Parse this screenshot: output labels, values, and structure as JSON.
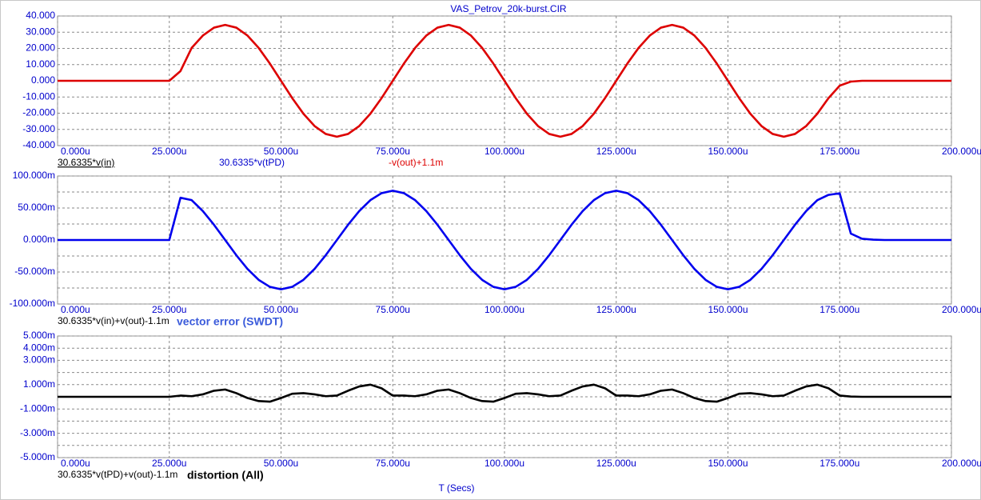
{
  "chart_data": [
    {
      "type": "line",
      "title": "VAS_Petrov_20k-burst.CIR",
      "x": [
        0,
        2.5,
        5,
        7.5,
        10,
        12.5,
        15,
        17.5,
        20,
        22.5,
        25,
        27.5,
        30,
        32.5,
        35,
        37.5,
        40,
        42.5,
        45,
        47.5,
        50,
        52.5,
        55,
        57.5,
        60,
        62.5,
        65,
        67.5,
        70,
        72.5,
        75,
        77.5,
        80,
        82.5,
        85,
        87.5,
        90,
        92.5,
        95,
        97.5,
        100,
        102.5,
        105,
        107.5,
        110,
        112.5,
        115,
        117.5,
        120,
        122.5,
        125,
        127.5,
        130,
        132.5,
        135,
        137.5,
        140,
        142.5,
        145,
        147.5,
        150,
        152.5,
        155,
        157.5,
        160,
        162.5,
        165,
        167.5,
        170,
        172.5,
        175,
        177.5,
        180,
        182.5,
        185,
        187.5,
        190,
        192.5,
        195,
        197.5,
        200
      ],
      "series": [
        {
          "name": "-v(out)+1.1m",
          "color": "#dd0000",
          "values": [
            0,
            0,
            0,
            0,
            0,
            0,
            0,
            0,
            0,
            0,
            0,
            6,
            20.28,
            27.91,
            32.81,
            34.5,
            32.81,
            27.91,
            20.28,
            10.66,
            0,
            -10.66,
            -20.28,
            -27.91,
            -32.81,
            -34.5,
            -32.81,
            -27.91,
            -20.28,
            -10.66,
            0,
            10.66,
            20.28,
            27.91,
            32.81,
            34.5,
            32.81,
            27.91,
            20.28,
            10.66,
            0,
            -10.66,
            -20.28,
            -27.91,
            -32.81,
            -34.5,
            -32.81,
            -27.91,
            -20.28,
            -10.66,
            0,
            10.66,
            20.28,
            27.91,
            32.81,
            34.5,
            32.81,
            27.91,
            20.28,
            10.66,
            0,
            -10.66,
            -20.28,
            -27.91,
            -32.81,
            -34.5,
            -32.81,
            -27.91,
            -20.28,
            -10.66,
            -3,
            -0.5,
            0,
            0,
            0,
            0,
            0,
            0,
            0,
            0,
            0
          ]
        }
      ],
      "expression_labels": [
        "30.6335*v(in)",
        "30.6335*v(tPD)"
      ],
      "xlim": [
        0,
        200
      ],
      "xticks": [
        {
          "value": 0,
          "label": "0.000u"
        },
        {
          "value": 25,
          "label": "25.000u"
        },
        {
          "value": 50,
          "label": "50.000u"
        },
        {
          "value": 75,
          "label": "75.000u"
        },
        {
          "value": 100,
          "label": "100.000u"
        },
        {
          "value": 125,
          "label": "125.000u"
        },
        {
          "value": 150,
          "label": "150.000u"
        },
        {
          "value": 175,
          "label": "175.000u"
        },
        {
          "value": 200,
          "label": "200.000u"
        }
      ],
      "ylim": [
        -40,
        40
      ],
      "yticks": [
        {
          "value": 40,
          "label": "40.000"
        },
        {
          "value": 30,
          "label": "30.000"
        },
        {
          "value": 20,
          "label": "20.000"
        },
        {
          "value": 10,
          "label": "10.000"
        },
        {
          "value": 0,
          "label": "0.000"
        },
        {
          "value": -10,
          "label": "-10.000"
        },
        {
          "value": -20,
          "label": "-20.000"
        },
        {
          "value": -30,
          "label": "-30.000"
        },
        {
          "value": -40,
          "label": "-40.000"
        }
      ],
      "grid": true
    },
    {
      "type": "line",
      "subtitle": "vector error (SWDT)",
      "x": [
        0,
        2.5,
        5,
        7.5,
        10,
        12.5,
        15,
        17.5,
        20,
        22.5,
        25,
        27.5,
        30,
        32.5,
        35,
        37.5,
        40,
        42.5,
        45,
        47.5,
        50,
        52.5,
        55,
        57.5,
        60,
        62.5,
        65,
        67.5,
        70,
        72.5,
        75,
        77.5,
        80,
        82.5,
        85,
        87.5,
        90,
        92.5,
        95,
        97.5,
        100,
        102.5,
        105,
        107.5,
        110,
        112.5,
        115,
        117.5,
        120,
        122.5,
        125,
        127.5,
        130,
        132.5,
        135,
        137.5,
        140,
        142.5,
        145,
        147.5,
        150,
        152.5,
        155,
        157.5,
        160,
        162.5,
        165,
        167.5,
        170,
        172.5,
        175,
        177.5,
        180,
        182.5,
        185,
        187.5,
        190,
        192.5,
        195,
        197.5,
        200
      ],
      "series": [
        {
          "name": "30.6335*v(in)+v(out)-1.1m",
          "color": "#0000ee",
          "values": [
            0,
            0,
            0,
            0,
            0,
            0,
            0,
            0,
            0,
            0,
            0,
            66,
            62.3,
            45.3,
            23.8,
            0,
            -23.8,
            -45.3,
            -62.3,
            -73.2,
            -77,
            -73.2,
            -62.3,
            -45.3,
            -23.8,
            0,
            23.8,
            45.3,
            62.3,
            73.2,
            77,
            73.2,
            62.3,
            45.3,
            23.8,
            0,
            -23.8,
            -45.3,
            -62.3,
            -73.2,
            -77,
            -73.2,
            -62.3,
            -45.3,
            -23.8,
            0,
            23.8,
            45.3,
            62.3,
            73.2,
            77,
            73.2,
            62.3,
            45.3,
            23.8,
            0,
            -23.8,
            -45.3,
            -62.3,
            -73.2,
            -77,
            -73.2,
            -62.3,
            -45.3,
            -23.8,
            0,
            23.8,
            45.3,
            62.3,
            70.5,
            73,
            10,
            2,
            0.5,
            0,
            0,
            0,
            0,
            0,
            0,
            0
          ]
        }
      ],
      "xlim": [
        0,
        200
      ],
      "xticks": [
        {
          "value": 0,
          "label": "0.000u"
        },
        {
          "value": 25,
          "label": "25.000u"
        },
        {
          "value": 50,
          "label": "50.000u"
        },
        {
          "value": 75,
          "label": "75.000u"
        },
        {
          "value": 100,
          "label": "100.000u"
        },
        {
          "value": 125,
          "label": "125.000u"
        },
        {
          "value": 150,
          "label": "150.000u"
        },
        {
          "value": 175,
          "label": "175.000u"
        },
        {
          "value": 200,
          "label": "200.000u"
        }
      ],
      "ylim": [
        -100,
        100
      ],
      "yticks": [
        {
          "value": 100,
          "label": "100.000m"
        },
        {
          "value": 50,
          "label": "50.000m"
        },
        {
          "value": 0,
          "label": "0.000m"
        },
        {
          "value": -50,
          "label": "-50.000m"
        },
        {
          "value": -100,
          "label": "-100.000m"
        }
      ],
      "minor_yticks": [
        75,
        25,
        -25,
        -75
      ],
      "grid": true
    },
    {
      "type": "line",
      "subtitle": "distortion (All)",
      "x_label": "T (Secs)",
      "x": [
        0,
        2.5,
        5,
        7.5,
        10,
        12.5,
        15,
        17.5,
        20,
        22.5,
        25,
        27.5,
        30,
        32.5,
        35,
        37.5,
        40,
        42.5,
        45,
        47.5,
        50,
        52.5,
        55,
        57.5,
        60,
        62.5,
        65,
        67.5,
        70,
        72.5,
        75,
        77.5,
        80,
        82.5,
        85,
        87.5,
        90,
        92.5,
        95,
        97.5,
        100,
        102.5,
        105,
        107.5,
        110,
        112.5,
        115,
        117.5,
        120,
        122.5,
        125,
        127.5,
        130,
        132.5,
        135,
        137.5,
        140,
        142.5,
        145,
        147.5,
        150,
        152.5,
        155,
        157.5,
        160,
        162.5,
        165,
        167.5,
        170,
        172.5,
        175,
        177.5,
        180,
        182.5,
        185,
        187.5,
        190,
        192.5,
        195,
        197.5,
        200
      ],
      "series": [
        {
          "name": "30.6335*v(tPD)+v(out)-1.1m",
          "color": "#000000",
          "values": [
            0,
            0,
            0,
            0,
            0,
            0,
            0,
            0,
            0,
            0,
            0,
            0.1,
            0.05,
            0.2,
            0.5,
            0.6,
            0.3,
            -0.1,
            -0.35,
            -0.4,
            -0.1,
            0.25,
            0.3,
            0.2,
            0.05,
            0.1,
            0.5,
            0.85,
            1.0,
            0.7,
            0.1,
            0.1,
            0.05,
            0.2,
            0.5,
            0.6,
            0.3,
            -0.1,
            -0.35,
            -0.4,
            -0.1,
            0.25,
            0.3,
            0.2,
            0.05,
            0.1,
            0.5,
            0.85,
            1.0,
            0.7,
            0.1,
            0.1,
            0.05,
            0.2,
            0.5,
            0.6,
            0.3,
            -0.1,
            -0.35,
            -0.4,
            -0.1,
            0.25,
            0.3,
            0.2,
            0.05,
            0.1,
            0.5,
            0.85,
            1.0,
            0.7,
            0.1,
            0.02,
            0,
            0,
            0,
            0,
            0,
            0,
            0,
            0,
            0
          ]
        }
      ],
      "xlim": [
        0,
        200
      ],
      "xticks": [
        {
          "value": 0,
          "label": "0.000u"
        },
        {
          "value": 25,
          "label": "25.000u"
        },
        {
          "value": 50,
          "label": "50.000u"
        },
        {
          "value": 75,
          "label": "75.000u"
        },
        {
          "value": 100,
          "label": "100.000u"
        },
        {
          "value": 125,
          "label": "125.000u"
        },
        {
          "value": 150,
          "label": "150.000u"
        },
        {
          "value": 175,
          "label": "175.000u"
        },
        {
          "value": 200,
          "label": "200.000u"
        }
      ],
      "ylim": [
        -5,
        5
      ],
      "yticks": [
        {
          "value": 5,
          "label": "5.000m"
        },
        {
          "value": 4,
          "label": "4.000m"
        },
        {
          "value": 3,
          "label": "3.000m"
        },
        {
          "value": 1,
          "label": "1.000m"
        },
        {
          "value": -1,
          "label": "-1.000m"
        },
        {
          "value": -3,
          "label": "-3.000m"
        },
        {
          "value": -5,
          "label": "-5.000m"
        }
      ],
      "minor_yticks": [
        2,
        0,
        -2,
        -4
      ],
      "grid": true
    }
  ]
}
